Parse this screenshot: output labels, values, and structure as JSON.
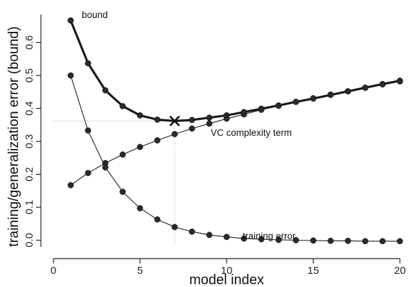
{
  "chart_data": {
    "type": "line",
    "xlabel": "model index",
    "ylabel": "training/generalization error (bound)",
    "xlim": [
      0,
      20.6
    ],
    "ylim": [
      -0.02,
      0.685
    ],
    "xticks": [
      "0",
      "5",
      "10",
      "15",
      "20"
    ],
    "yticks": [
      "0.0",
      "0.1",
      "0.2",
      "0.3",
      "0.4",
      "0.5",
      "0.6"
    ],
    "x": [
      1,
      2,
      3,
      4,
      5,
      6,
      7,
      8,
      9,
      10,
      11,
      12,
      13,
      14,
      15,
      16,
      17,
      18,
      19,
      20
    ],
    "series": [
      {
        "name": "bound",
        "values": [
          0.667,
          0.537,
          0.455,
          0.407,
          0.379,
          0.366,
          0.362,
          0.365,
          0.372,
          0.379,
          0.389,
          0.399,
          0.409,
          0.42,
          0.43,
          0.441,
          0.452,
          0.463,
          0.474,
          0.484
        ]
      },
      {
        "name": "VC complexity term",
        "values": [
          0.167,
          0.204,
          0.234,
          0.26,
          0.283,
          0.303,
          0.322,
          0.339,
          0.354,
          0.369,
          0.382,
          0.396,
          0.408,
          0.42,
          0.431,
          0.442,
          0.452,
          0.463,
          0.473,
          0.482
        ]
      },
      {
        "name": "training error",
        "values": [
          0.5,
          0.333,
          0.221,
          0.147,
          0.097,
          0.063,
          0.04,
          0.026,
          0.016,
          0.01,
          0.005,
          0.003,
          0.001,
          0.0,
          -0.001,
          -0.002,
          -0.002,
          -0.003,
          -0.003,
          -0.003
        ]
      }
    ],
    "minimum": {
      "x": 7,
      "y": 0.362
    },
    "grid": false,
    "legend": "none"
  }
}
